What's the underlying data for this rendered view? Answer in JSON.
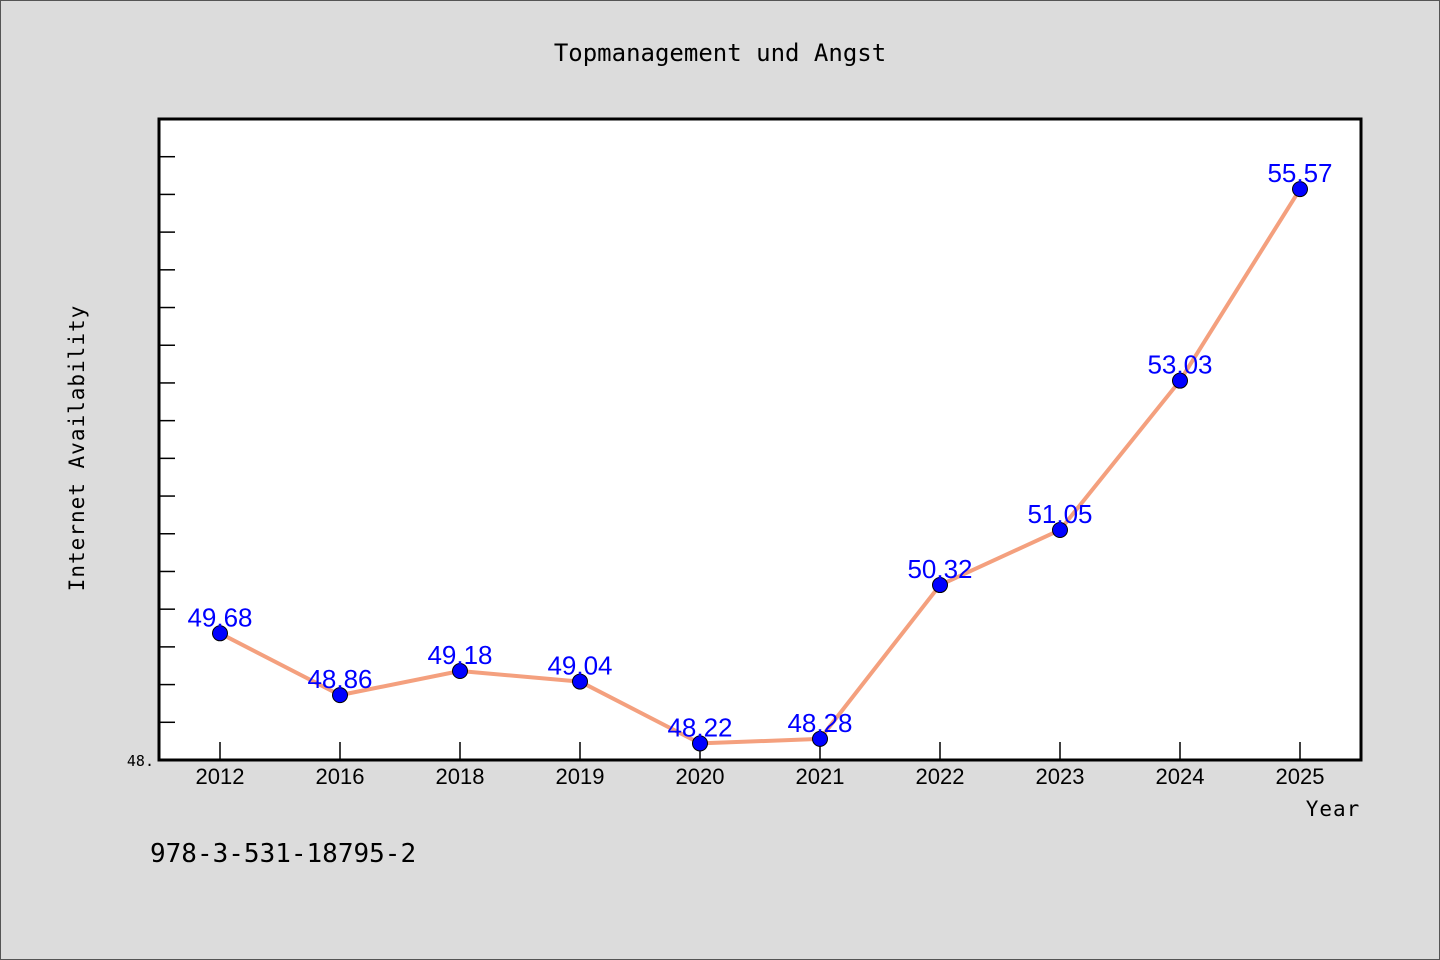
{
  "chart_data": {
    "type": "line",
    "title": "Topmanagement und Angst",
    "xlabel": "Year",
    "ylabel": "Internet Availability",
    "categories": [
      "2012",
      "2016",
      "2018",
      "2019",
      "2020",
      "2021",
      "2022",
      "2023",
      "2024",
      "2025"
    ],
    "values": [
      49.68,
      48.86,
      49.18,
      49.04,
      48.22,
      48.28,
      50.32,
      51.05,
      53.03,
      55.57
    ],
    "data_labels": [
      "49.68",
      "48.86",
      "49.18",
      "49.04",
      "48.22",
      "48.28",
      "50.32",
      "51.05",
      "53.03",
      "55.57"
    ],
    "y_tick_labels": [
      "48."
    ],
    "ylim": [
      48.0,
      56.5
    ],
    "grid": false,
    "legend": "none",
    "line_color": "#f4a07e",
    "marker_color": "#0000ff",
    "label_color": "#0000ff"
  },
  "footer": {
    "isbn": "978-3-531-18795-2"
  },
  "colors": {
    "background": "#dcdcdc",
    "plot_background": "#ffffff"
  }
}
